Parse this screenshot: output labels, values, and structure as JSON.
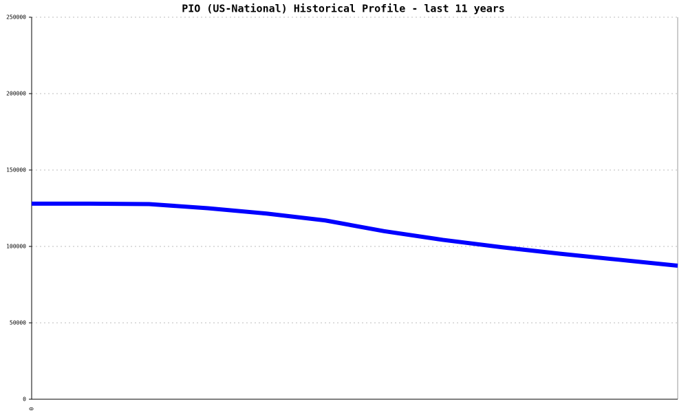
{
  "chart_data": {
    "type": "line",
    "title": "PIO (US-National) Historical Profile - last 11 years",
    "categories": [
      "0",
      null,
      null,
      null,
      null,
      null,
      null,
      null,
      null,
      null,
      null,
      null
    ],
    "series": [
      {
        "color": "#0000ff",
        "values": [
          128000,
          128000,
          127700,
          125000,
          121500,
          117000,
          110000,
          104300,
          99500,
          95200,
          91300,
          87400
        ]
      }
    ],
    "ylim": [
      0,
      250000
    ],
    "yticks": [
      0,
      50000,
      100000,
      150000,
      200000,
      250000
    ],
    "grid": true
  }
}
